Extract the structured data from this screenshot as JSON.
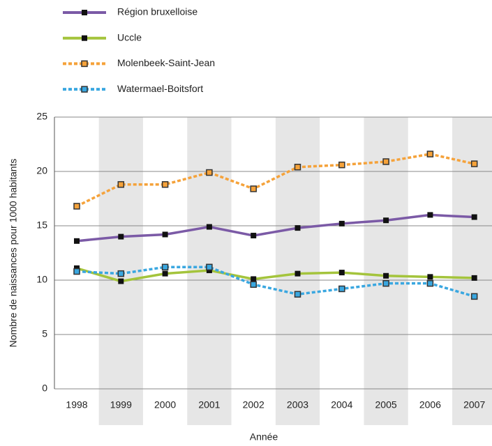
{
  "chart_data": {
    "type": "line",
    "x_label": "Année",
    "y_label": "Nombre de naissances pour 1000 habitants",
    "categories": [
      "1998",
      "1999",
      "2000",
      "2001",
      "2002",
      "2003",
      "2004",
      "2005",
      "2006",
      "2007"
    ],
    "series": [
      {
        "name": "Région bruxelloise",
        "color": "#7b5aa6",
        "dashed": false,
        "values": [
          13.6,
          14.0,
          14.2,
          14.9,
          14.1,
          14.8,
          15.2,
          15.5,
          16.0,
          15.8
        ]
      },
      {
        "name": "Uccle",
        "color": "#a4c43c",
        "dashed": false,
        "values": [
          11.1,
          9.9,
          10.6,
          10.9,
          10.1,
          10.6,
          10.7,
          10.4,
          10.3,
          10.2
        ]
      },
      {
        "name": "Molenbeek-Saint-Jean",
        "color": "#f5a23a",
        "dashed": true,
        "values": [
          16.8,
          18.8,
          18.8,
          19.9,
          18.4,
          20.4,
          20.6,
          20.9,
          21.6,
          20.7
        ]
      },
      {
        "name": "Watermael-Boitsfort",
        "color": "#3aa7e0",
        "dashed": true,
        "values": [
          10.8,
          10.6,
          11.2,
          11.2,
          9.6,
          8.7,
          9.2,
          9.7,
          9.7,
          8.5
        ]
      }
    ],
    "ylim": [
      0,
      25
    ],
    "yticks": [
      0,
      5,
      10,
      15,
      20,
      25
    ],
    "grid": true,
    "legend": "top-left"
  }
}
